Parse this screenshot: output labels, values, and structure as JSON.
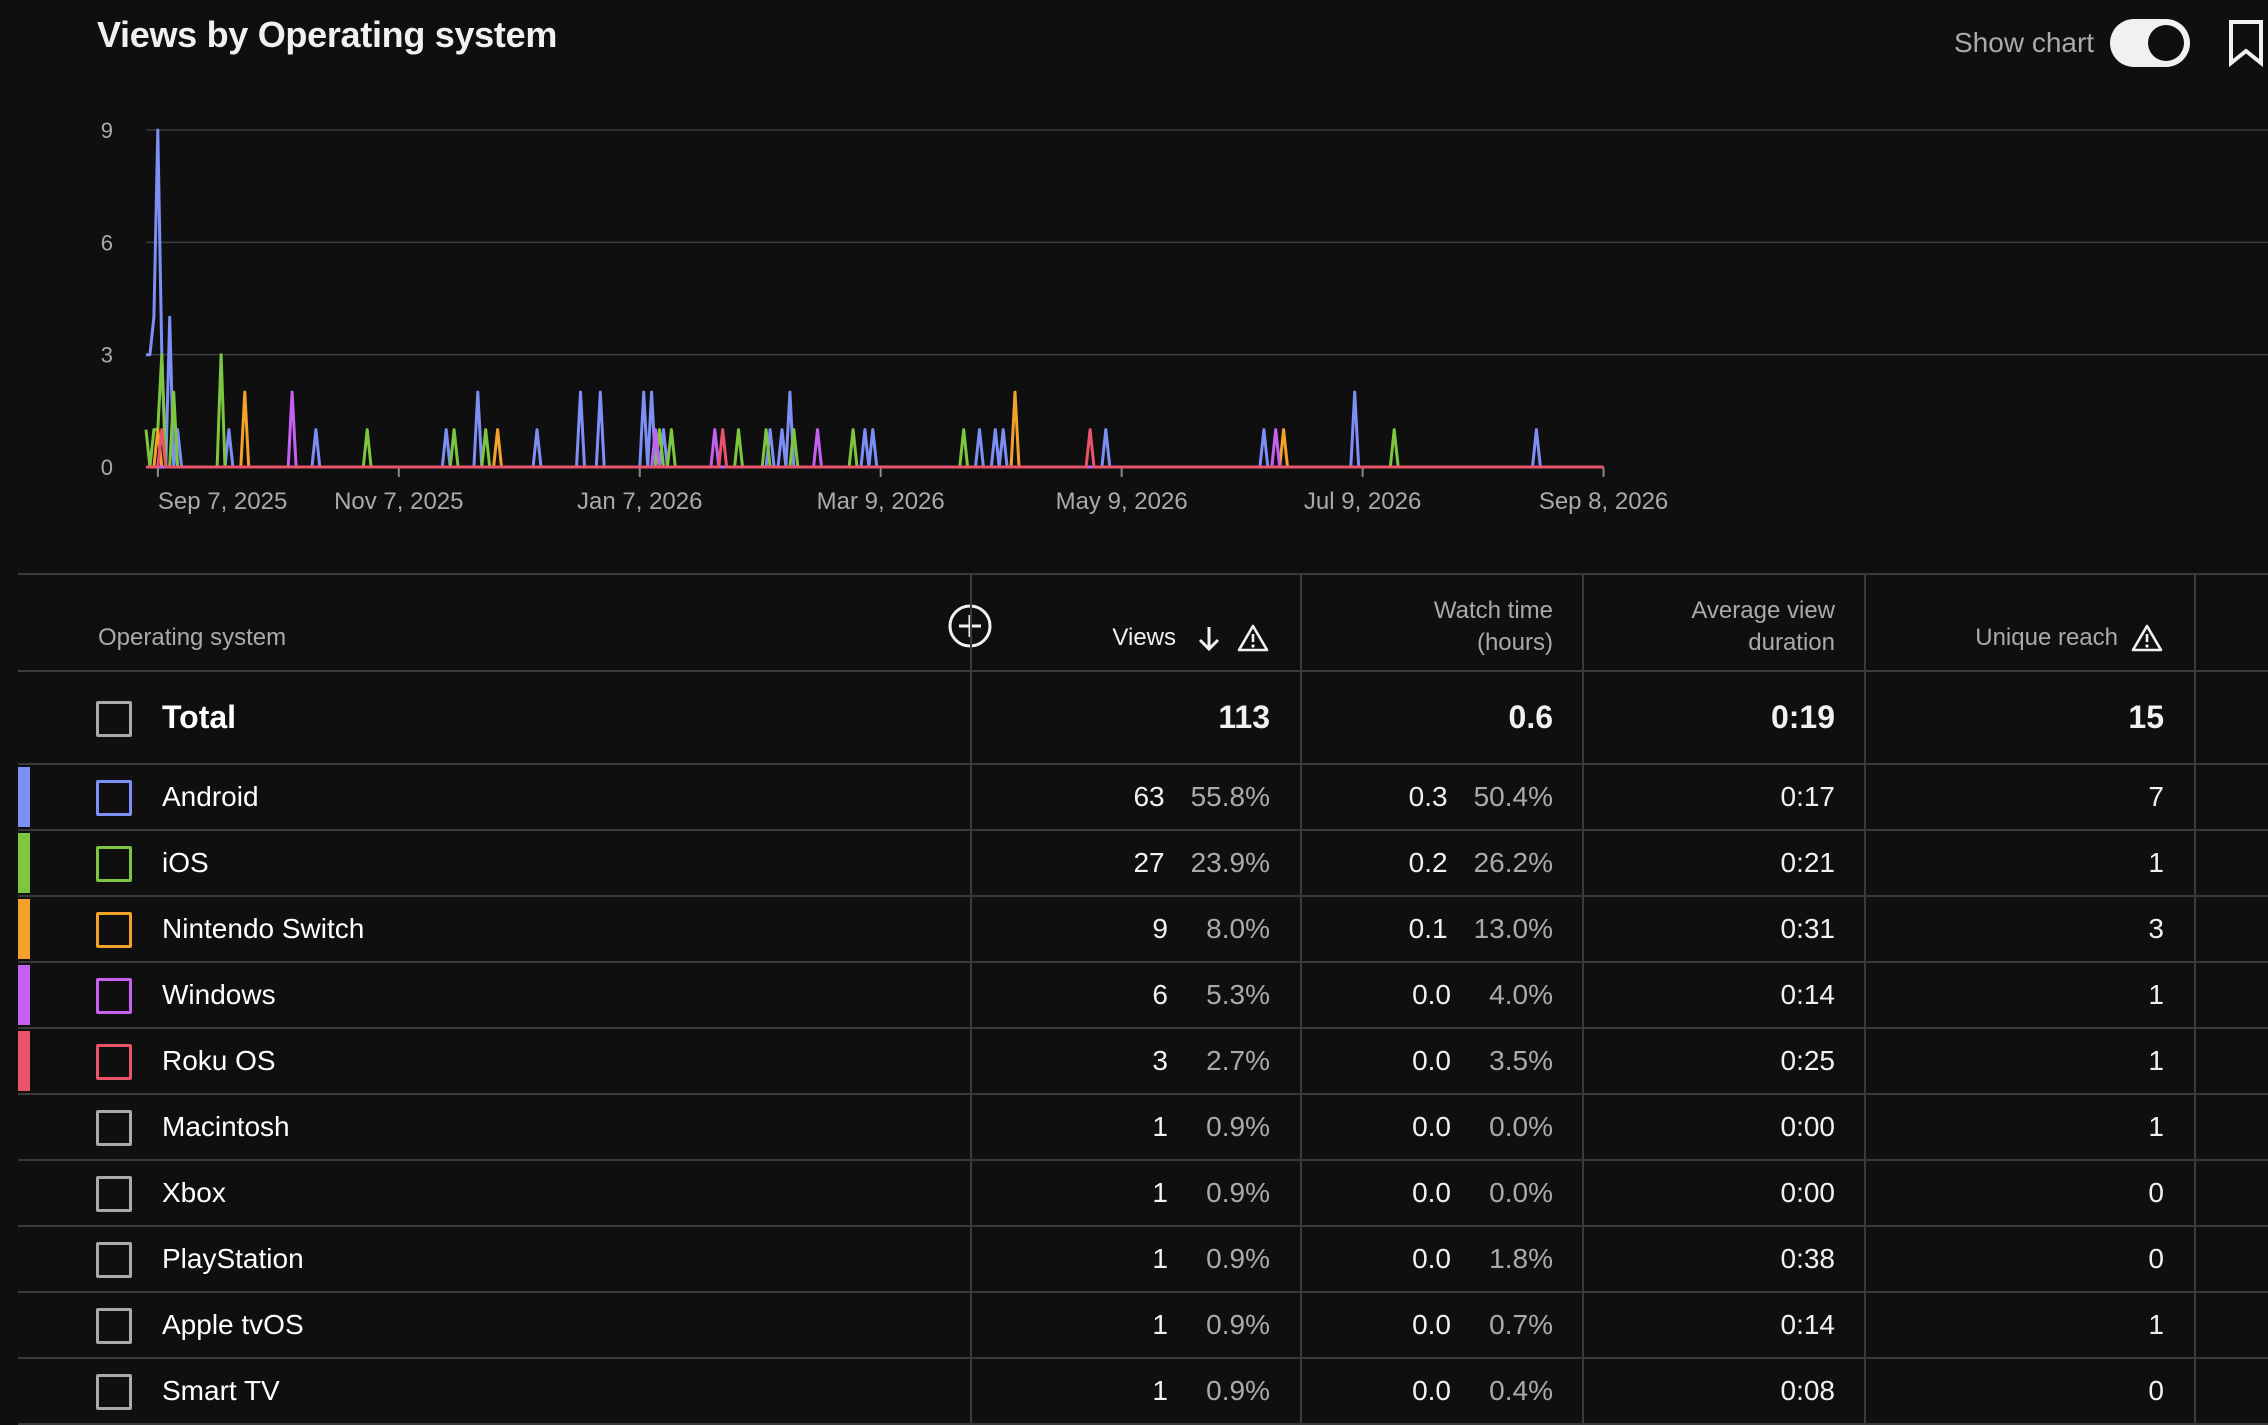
{
  "page_title": "Views by Operating system",
  "show_chart_label": "Show chart",
  "chart_data": {
    "type": "line",
    "ylim": [
      0,
      9
    ],
    "yticks": [
      0,
      3,
      6,
      9
    ],
    "x_start": "2025-09-04",
    "x_end": "2026-09-08",
    "xtick_labels": [
      {
        "date": "2025-09-07",
        "label": "Sep 7, 2025"
      },
      {
        "date": "2025-11-07",
        "label": "Nov 7, 2025"
      },
      {
        "date": "2026-01-07",
        "label": "Jan 7, 2026"
      },
      {
        "date": "2026-03-09",
        "label": "Mar 9, 2026"
      },
      {
        "date": "2026-05-09",
        "label": "May 9, 2026"
      },
      {
        "date": "2026-07-09",
        "label": "Jul 9, 2026"
      },
      {
        "date": "2026-09-08",
        "label": "Sep 8, 2026"
      }
    ],
    "series": [
      {
        "name": "Android",
        "color": "#7d8ff5",
        "points": [
          [
            "2025-09-04",
            3
          ],
          [
            "2025-09-05",
            3
          ],
          [
            "2025-09-06",
            4
          ],
          [
            "2025-09-07",
            9
          ],
          [
            "2025-09-08",
            3
          ],
          [
            "2025-09-09",
            0
          ],
          [
            "2025-09-10",
            4
          ],
          [
            "2025-09-11",
            0
          ],
          [
            "2025-09-12",
            1
          ],
          [
            "2025-09-13",
            0
          ],
          [
            "2025-09-25",
            1
          ],
          [
            "2025-10-17",
            1
          ],
          [
            "2025-11-19",
            1
          ],
          [
            "2025-11-27",
            2
          ],
          [
            "2025-12-12",
            1
          ],
          [
            "2025-12-23",
            2
          ],
          [
            "2025-12-28",
            2
          ],
          [
            "2026-01-08",
            2
          ],
          [
            "2026-01-10",
            2
          ],
          [
            "2026-01-13",
            1
          ],
          [
            "2026-02-09",
            1
          ],
          [
            "2026-02-12",
            1
          ],
          [
            "2026-02-14",
            2
          ],
          [
            "2026-03-05",
            1
          ],
          [
            "2026-03-07",
            1
          ],
          [
            "2026-04-03",
            1
          ],
          [
            "2026-04-07",
            1
          ],
          [
            "2026-04-09",
            1
          ],
          [
            "2026-05-05",
            1
          ],
          [
            "2026-06-14",
            1
          ],
          [
            "2026-07-07",
            2
          ],
          [
            "2026-08-22",
            1
          ]
        ]
      },
      {
        "name": "iOS",
        "color": "#7dc63f",
        "points": [
          [
            "2025-09-04",
            1
          ],
          [
            "2025-09-05",
            0
          ],
          [
            "2025-09-06",
            1
          ],
          [
            "2025-09-07",
            1
          ],
          [
            "2025-09-08",
            3
          ],
          [
            "2025-09-09",
            0
          ],
          [
            "2025-09-11",
            2
          ],
          [
            "2025-09-12",
            0
          ],
          [
            "2025-09-23",
            3
          ],
          [
            "2025-10-30",
            1
          ],
          [
            "2025-11-21",
            1
          ],
          [
            "2025-11-29",
            1
          ],
          [
            "2026-01-12",
            1
          ],
          [
            "2026-01-15",
            1
          ],
          [
            "2026-02-01",
            1
          ],
          [
            "2026-02-08",
            1
          ],
          [
            "2026-02-15",
            1
          ],
          [
            "2026-03-02",
            1
          ],
          [
            "2026-03-30",
            1
          ],
          [
            "2026-07-17",
            1
          ]
        ]
      },
      {
        "name": "Nintendo Switch",
        "color": "#f2a12b",
        "points": [
          [
            "2025-09-04",
            0
          ],
          [
            "2025-09-07",
            1
          ],
          [
            "2025-09-08",
            0
          ],
          [
            "2025-09-29",
            2
          ],
          [
            "2025-12-02",
            1
          ],
          [
            "2026-04-12",
            2
          ],
          [
            "2026-06-19",
            1
          ]
        ]
      },
      {
        "name": "Windows",
        "color": "#c660f0",
        "points": [
          [
            "2025-09-04",
            0
          ],
          [
            "2025-10-11",
            2
          ],
          [
            "2026-01-11",
            1
          ],
          [
            "2026-01-26",
            1
          ],
          [
            "2026-02-21",
            1
          ],
          [
            "2026-06-17",
            1
          ]
        ]
      },
      {
        "name": "Roku OS",
        "color": "#e9546b",
        "points": [
          [
            "2025-09-04",
            0
          ],
          [
            "2025-09-08",
            1
          ],
          [
            "2026-01-28",
            1
          ],
          [
            "2026-05-01",
            1
          ]
        ]
      }
    ]
  },
  "table": {
    "headers": {
      "os": "Operating system",
      "views": "Views",
      "watch_time_line1": "Watch time",
      "watch_time_line2": "(hours)",
      "avg_duration_line1": "Average view",
      "avg_duration_line2": "duration",
      "unique_reach": "Unique reach"
    },
    "total": {
      "label": "Total",
      "views": "113",
      "watch_time": "0.6",
      "avg_duration": "0:19",
      "unique_reach": "15"
    },
    "rows": [
      {
        "name": "Android",
        "color": "#7d8ff5",
        "views": "63",
        "views_pct": "55.8%",
        "watch": "0.3",
        "watch_pct": "50.4%",
        "avg": "0:17",
        "reach": "7"
      },
      {
        "name": "iOS",
        "color": "#7dc63f",
        "views": "27",
        "views_pct": "23.9%",
        "watch": "0.2",
        "watch_pct": "26.2%",
        "avg": "0:21",
        "reach": "1"
      },
      {
        "name": "Nintendo Switch",
        "color": "#f2a12b",
        "views": "9",
        "views_pct": "8.0%",
        "watch": "0.1",
        "watch_pct": "13.0%",
        "avg": "0:31",
        "reach": "3"
      },
      {
        "name": "Windows",
        "color": "#c660f0",
        "views": "6",
        "views_pct": "5.3%",
        "watch": "0.0",
        "watch_pct": "4.0%",
        "avg": "0:14",
        "reach": "1"
      },
      {
        "name": "Roku OS",
        "color": "#e9546b",
        "views": "3",
        "views_pct": "2.7%",
        "watch": "0.0",
        "watch_pct": "3.5%",
        "avg": "0:25",
        "reach": "1"
      },
      {
        "name": "Macintosh",
        "color": "",
        "views": "1",
        "views_pct": "0.9%",
        "watch": "0.0",
        "watch_pct": "0.0%",
        "avg": "0:00",
        "reach": "1"
      },
      {
        "name": "Xbox",
        "color": "",
        "views": "1",
        "views_pct": "0.9%",
        "watch": "0.0",
        "watch_pct": "0.0%",
        "avg": "0:00",
        "reach": "0"
      },
      {
        "name": "PlayStation",
        "color": "",
        "views": "1",
        "views_pct": "0.9%",
        "watch": "0.0",
        "watch_pct": "1.8%",
        "avg": "0:38",
        "reach": "0"
      },
      {
        "name": "Apple tvOS",
        "color": "",
        "views": "1",
        "views_pct": "0.9%",
        "watch": "0.0",
        "watch_pct": "0.7%",
        "avg": "0:14",
        "reach": "1"
      },
      {
        "name": "Smart TV",
        "color": "",
        "views": "1",
        "views_pct": "0.9%",
        "watch": "0.0",
        "watch_pct": "0.4%",
        "avg": "0:08",
        "reach": "0"
      }
    ]
  }
}
